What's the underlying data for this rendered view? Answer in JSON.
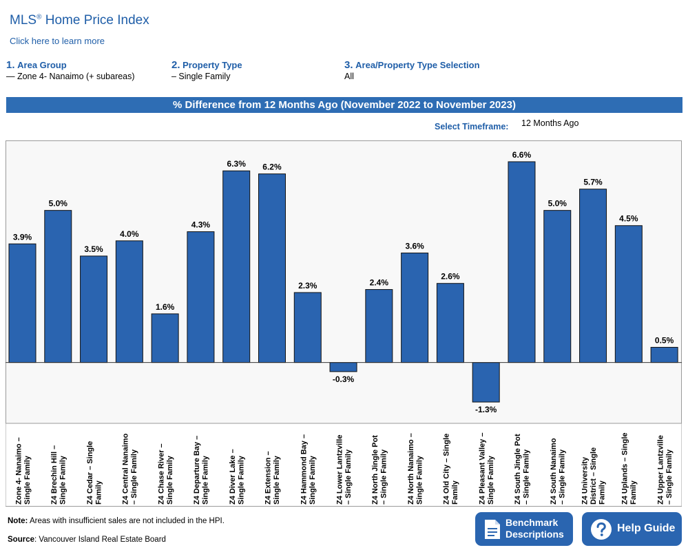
{
  "header": {
    "title": "MLS",
    "title_reg": "®",
    "title_rest": " Home Price Index",
    "learn_link": "Click here to learn more"
  },
  "steps": [
    {
      "num": "1.",
      "label": "Area Group",
      "value": "— Zone 4- Nanaimo (+ subareas)"
    },
    {
      "num": "2.",
      "label": "Property Type",
      "value": "– Single Family"
    },
    {
      "num": "3.",
      "label": "Area/Property Type Selection",
      "value": "All"
    }
  ],
  "banner": "% Difference from 12 Months Ago (November 2022 to November 2023)",
  "timeframe": {
    "label": "Select Timeframe:",
    "value": "12 Months Ago"
  },
  "chart_data": {
    "type": "bar",
    "title": "% Difference from 12 Months Ago (November 2022 to November 2023)",
    "categories": [
      [
        "Zone 4- Nanaimo –",
        "Single Family"
      ],
      [
        "Z4 Brechin Hill –",
        "Single Family"
      ],
      [
        "Z4 Cedar – Single",
        "Family"
      ],
      [
        "Z4 Central Nanaimo",
        "– Single Family"
      ],
      [
        "Z4 Chase River –",
        "Single Family"
      ],
      [
        "Z4 Departure Bay –",
        "Single Family"
      ],
      [
        "Z4 Diver Lake –",
        "Single Family"
      ],
      [
        "Z4 Extension –",
        "Single Family"
      ],
      [
        "Z4 Hammond Bay –",
        "Single Family"
      ],
      [
        "Z4 Lower Lantzville",
        "– Single Family"
      ],
      [
        "Z4 North Jingle Pot",
        "– Single Family"
      ],
      [
        "Z4 North Nanaimo –",
        "Single Family"
      ],
      [
        "Z4 Old City – Single",
        "Family"
      ],
      [
        "Z4 Pleasant Valley –",
        "Single Family"
      ],
      [
        "Z4 South Jingle Pot",
        "– Single Family"
      ],
      [
        "Z4 South Nanaimo",
        "– Single Family"
      ],
      [
        "Z4 University",
        "District – Single",
        "Family"
      ],
      [
        "Z4 Uplands – Single",
        "Family"
      ],
      [
        "Z4 Upper Lantzville",
        "– Single Family"
      ]
    ],
    "values": [
      3.9,
      5.0,
      3.5,
      4.0,
      1.6,
      4.3,
      6.3,
      6.2,
      2.3,
      -0.3,
      2.4,
      3.6,
      2.6,
      -1.3,
      6.6,
      5.0,
      5.7,
      4.5,
      0.5
    ],
    "labels": [
      "3.9%",
      "5.0%",
      "3.5%",
      "4.0%",
      "1.6%",
      "4.3%",
      "6.3%",
      "6.2%",
      "2.3%",
      "-0.3%",
      "2.4%",
      "3.6%",
      "2.6%",
      "-1.3%",
      "6.6%",
      "5.0%",
      "5.7%",
      "4.5%",
      "0.5%"
    ],
    "ylim": [
      -2.0,
      7.3
    ],
    "bar_color": "#2a64b0",
    "grid": false,
    "legend": "none"
  },
  "footer": {
    "note_bold": "Note:",
    "note_text": " Areas with insufficient sales are not included in the HPI.",
    "source_bold": "Source",
    "source_text": ": Vancouver Island Real Estate Board"
  },
  "buttons": {
    "benchmark_line1": "Benchmark",
    "benchmark_line2": "Descriptions",
    "help": "Help Guide"
  },
  "colors": {
    "accent": "#1f5ea8",
    "banner": "#2e6db4",
    "button": "#2a65b0"
  }
}
